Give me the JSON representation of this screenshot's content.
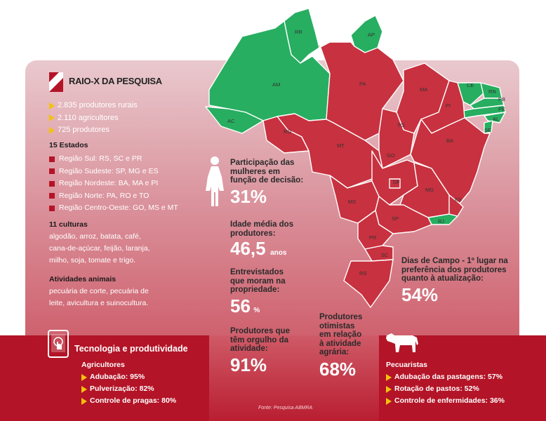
{
  "header": {
    "title": "RAIO-X DA PESQUISA"
  },
  "counts": [
    "2.835 produtores rurais",
    "2.110 agricultores",
    "725 produtores"
  ],
  "states": {
    "heading": "15 Estados",
    "regions": [
      "Região Sul: RS, SC e PR",
      "Região Sudeste: SP, MG e ES",
      "Região Nordeste: BA, MA e PI",
      "Região Norte: PA, RO e TO",
      "Região Centro-Oeste: GO, MS e MT"
    ]
  },
  "cultures": {
    "heading": "11 culturas",
    "lines": [
      "algodão,  arroz, batata, café,",
      "cana-de-açúcar, feijão, laranja,",
      "milho, soja, tomate e trigo."
    ]
  },
  "animals": {
    "heading": "Atividades animais",
    "lines": [
      "pecuária de corte, pecuária de",
      "leite, avicultura e suinocultura."
    ]
  },
  "stats": {
    "women": {
      "label": [
        "Participação das",
        "mulheres em",
        "função de decisão:"
      ],
      "value": "31%"
    },
    "age": {
      "label": [
        "Idade média dos",
        "produtores:"
      ],
      "value": "46,5",
      "unit": "anos"
    },
    "live": {
      "label": [
        "Entrevistados",
        "que moram na",
        "propriedade:"
      ],
      "value": "56",
      "unit": "%"
    },
    "pride": {
      "label": [
        "Produtores que",
        "têm orgulho da",
        "atividade:"
      ],
      "value": "91%"
    },
    "optimists": {
      "label": [
        "Produtores",
        "otimistas",
        "em relação",
        "à atividade",
        "agrária:"
      ],
      "value": "68%"
    },
    "field_days": {
      "label": [
        "Dias de Campo - 1º lugar na",
        "preferência dos produtores",
        "quanto à atualização:"
      ],
      "value": "54%"
    }
  },
  "tech": {
    "title": "Tecnologia e produtividade",
    "subheading": "Agricultores",
    "items": [
      "Adubação: 95%",
      "Pulverização: 82%",
      "Controle de pragas: 80%"
    ]
  },
  "livestock": {
    "subheading": "Pecuaristas",
    "items": [
      "Adubação das pastagens: 57%",
      "Rotação de pastos: 52%",
      "Controle de enfermidades: 36%"
    ]
  },
  "source": "Fonte: Pesquisa ABMRA",
  "map_labels": {
    "RR": "RR",
    "AP": "AP",
    "AM": "AM",
    "PA": "PA",
    "MA": "MA",
    "CE": "CE",
    "RN": "RN",
    "PB": "PB",
    "PE": "PE",
    "AL": "AL",
    "SE": "SE",
    "PI": "PI",
    "AC": "AC",
    "RO": "RO",
    "TO": "TO",
    "MT": "MT",
    "BA": "BA",
    "GO": "GO",
    "DF": "DF",
    "MG": "MG",
    "ES": "ES",
    "MS": "MS",
    "SP": "SP",
    "RJ": "RJ",
    "PR": "PR",
    "SC": "SC",
    "RS": "RS"
  },
  "colors": {
    "surveyed": "#c8313f",
    "not_surveyed": "#27ae60",
    "accent": "#f4c20d",
    "brand_red": "#b31427"
  }
}
